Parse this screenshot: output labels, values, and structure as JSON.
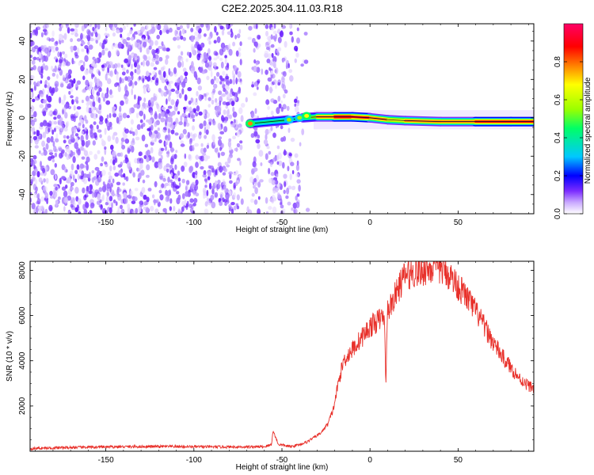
{
  "figure_title": "C2E2.2025.304.11.03.R18",
  "chart_data": [
    {
      "type": "heatmap",
      "xlabel": "Height of straight line (km)",
      "ylabel": "Frequency (Hz)",
      "xlim": [
        -193,
        93
      ],
      "ylim": [
        -50,
        49
      ],
      "x_ticks": [
        -150,
        -100,
        -50,
        0,
        50
      ],
      "y_ticks": [
        -40,
        -20,
        0,
        20,
        40
      ],
      "colorbar": {
        "label": "Normalized spectral amplitude",
        "range": [
          0,
          1
        ],
        "ticks": [
          0.0,
          0.2,
          0.4,
          0.6,
          0.8
        ],
        "colors": [
          "#ffffff",
          "#c9a8ff",
          "#7b2cff",
          "#0000ff",
          "#00c8ff",
          "#00ff66",
          "#9bff00",
          "#ffff00",
          "#ff8000",
          "#ff0000",
          "#ff0066"
        ]
      },
      "noise_region": {
        "x": [
          -193,
          -35
        ],
        "ymin": -50,
        "ymax": 49
      },
      "signal_band": [
        {
          "x": -68,
          "freq": -3,
          "amplitude": 0.6
        },
        {
          "x": -45,
          "freq": -1,
          "amplitude": 0.4
        },
        {
          "x": -38,
          "freq": 0,
          "amplitude": 0.5
        },
        {
          "x": -30,
          "freq": 0.5,
          "amplitude": 0.75
        },
        {
          "x": -20,
          "freq": 0.5,
          "amplitude": 0.95
        },
        {
          "x": -10,
          "freq": 0.5,
          "amplitude": 0.95
        },
        {
          "x": 0,
          "freq": 0,
          "amplitude": 0.9
        },
        {
          "x": 10,
          "freq": -1,
          "amplitude": 0.75
        },
        {
          "x": 20,
          "freq": -1.5,
          "amplitude": 0.8
        },
        {
          "x": 40,
          "freq": -2,
          "amplitude": 0.85
        },
        {
          "x": 60,
          "freq": -2,
          "amplitude": 0.9
        },
        {
          "x": 80,
          "freq": -2,
          "amplitude": 0.9
        },
        {
          "x": 93,
          "freq": -2,
          "amplitude": 0.9
        }
      ]
    },
    {
      "type": "line",
      "xlabel": "Height of straight line (km)",
      "ylabel": "SNR (10 * v/v)",
      "xlim": [
        -193,
        93
      ],
      "ylim": [
        0,
        8400
      ],
      "x_ticks": [
        -150,
        -100,
        -50,
        0,
        50
      ],
      "y_ticks": [
        2000,
        4000,
        6000,
        8000
      ],
      "line_color": "#e8302a",
      "series": [
        {
          "x": [
            -193,
            -180,
            -160,
            -140,
            -120,
            -100,
            -80,
            -60,
            -56,
            -55,
            -52,
            -45,
            -40,
            -36,
            -32,
            -28,
            -24,
            -21,
            -20,
            -18,
            -15,
            -10,
            -5,
            0,
            5,
            8,
            9,
            10,
            12,
            15,
            18,
            20,
            25,
            30,
            35,
            40,
            45,
            50,
            55,
            60,
            65,
            70,
            75,
            80,
            85,
            90,
            93
          ],
          "y": [
            120,
            150,
            180,
            200,
            210,
            200,
            190,
            200,
            300,
            900,
            300,
            200,
            300,
            400,
            600,
            800,
            1200,
            1800,
            2200,
            3000,
            4000,
            4500,
            5000,
            5500,
            5800,
            6000,
            3200,
            6200,
            6500,
            7000,
            7500,
            7800,
            7900,
            8000,
            8100,
            8100,
            7800,
            7300,
            6800,
            6200,
            5500,
            4800,
            4200,
            3700,
            3200,
            2900,
            2800
          ]
        }
      ]
    }
  ]
}
